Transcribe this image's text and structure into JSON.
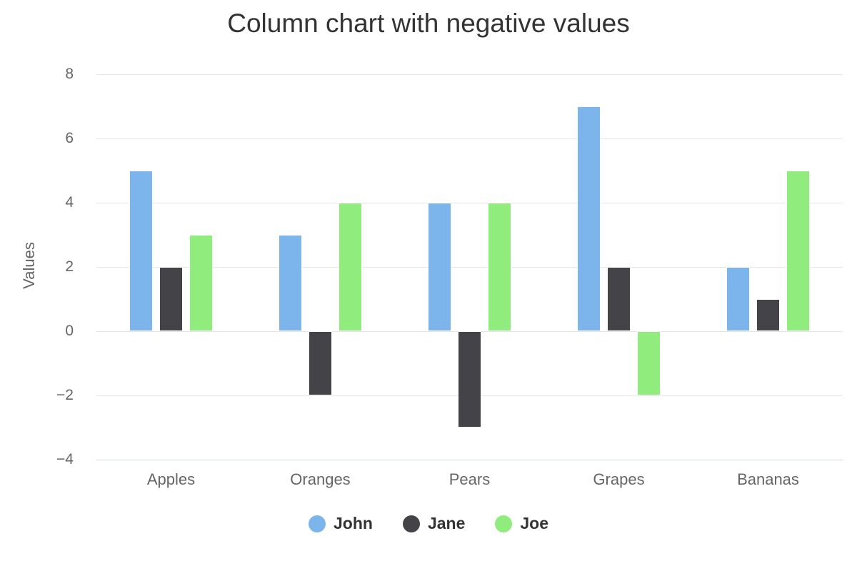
{
  "chart_data": {
    "type": "bar",
    "title": "Column chart with negative values",
    "xlabel": "",
    "ylabel": "Values",
    "categories": [
      "Apples",
      "Oranges",
      "Pears",
      "Grapes",
      "Bananas"
    ],
    "series": [
      {
        "name": "John",
        "color": "#7cb5ec",
        "values": [
          5,
          3,
          4,
          7,
          2
        ]
      },
      {
        "name": "Jane",
        "color": "#434348",
        "values": [
          2,
          -2,
          -3,
          2,
          1
        ]
      },
      {
        "name": "Joe",
        "color": "#90ed7d",
        "values": [
          3,
          4,
          4,
          -2,
          5
        ]
      }
    ],
    "ylim": [
      -4,
      8
    ],
    "yticks": [
      8,
      6,
      4,
      2,
      0,
      -2,
      -4
    ],
    "grid": true,
    "legend_position": "bottom",
    "style": {
      "background_color": "#ffffff",
      "gridline_color": "#e6e6e6",
      "x_axis_line_color": "#ccd6eb",
      "title_color": "#333333",
      "axis_label_color": "#666666",
      "legend_text_color": "#333333"
    }
  }
}
